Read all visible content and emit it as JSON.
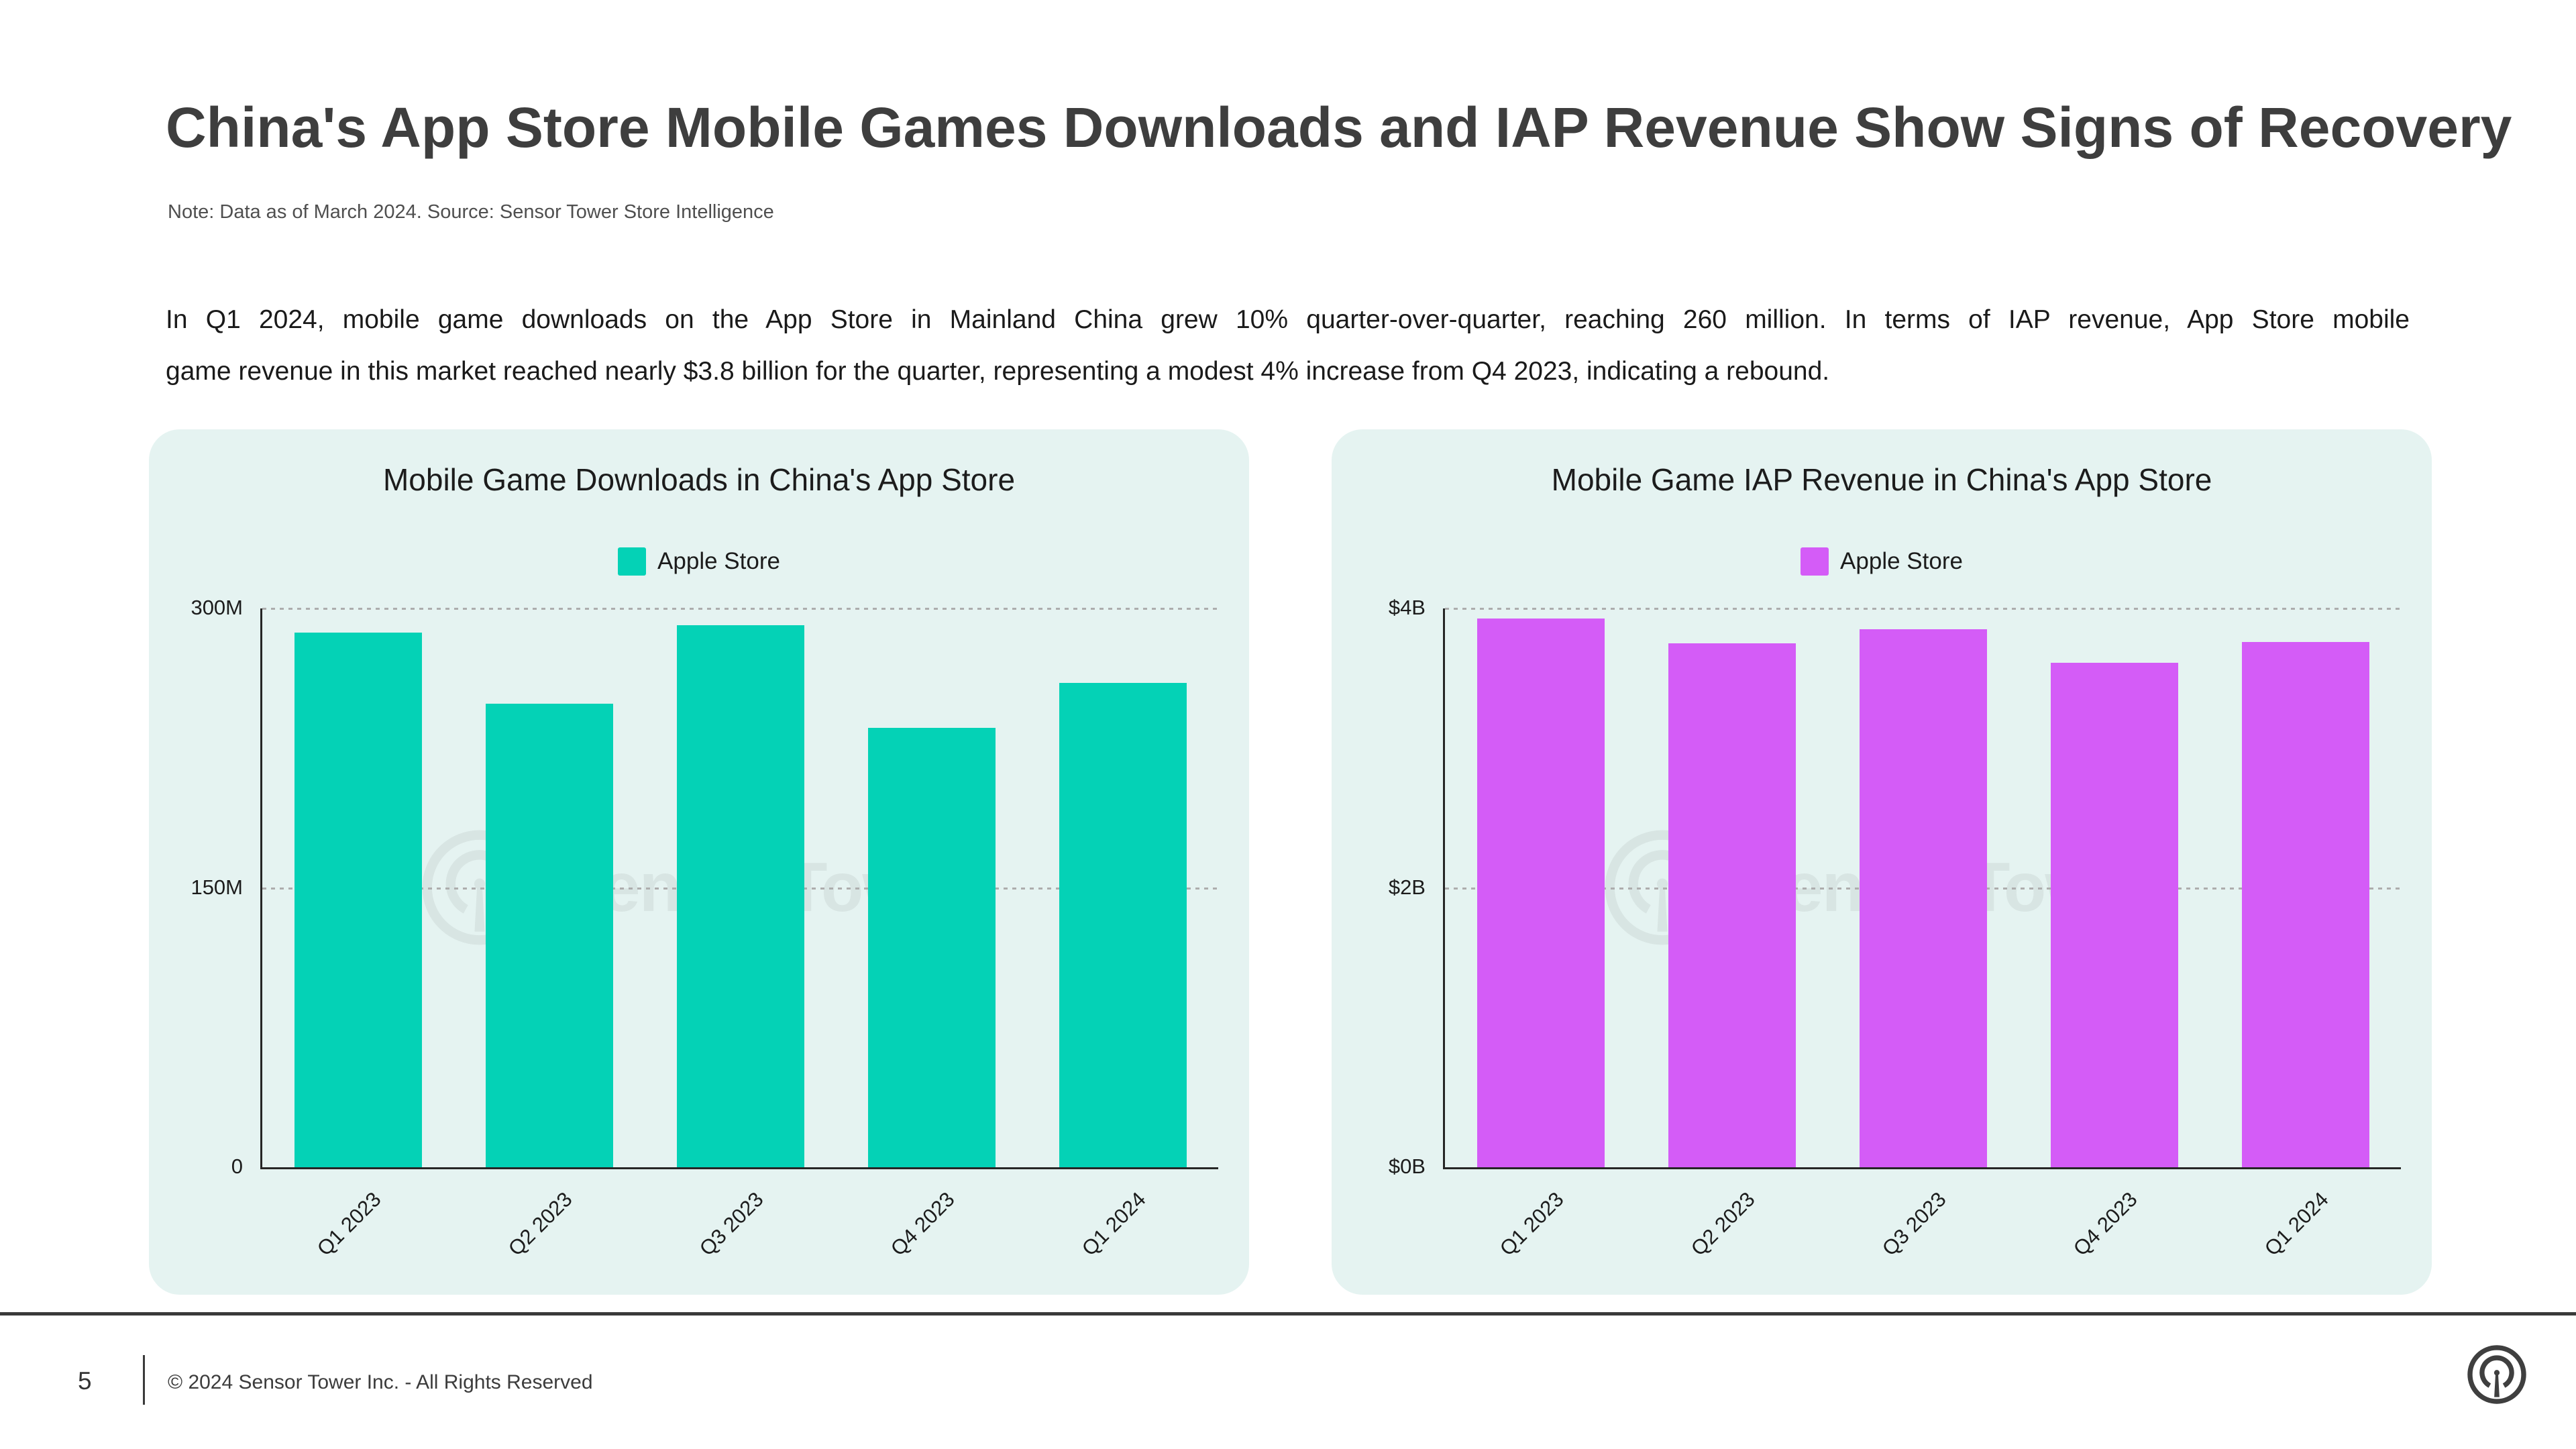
{
  "header": {
    "title": "China's App Store Mobile Games Downloads and IAP Revenue Show Signs of Recovery",
    "note": "Note: Data as of March 2024. Source: Sensor Tower Store Intelligence"
  },
  "body": {
    "lines": [
      "In Q1 2024, mobile game downloads on the App Store in Mainland China grew 10% quarter-over-quarter, reaching 260 million. In terms of IAP revenue, App Store mobile",
      "game revenue in this market reached nearly $3.8 billion for the quarter, representing a modest 4% increase from Q4 2023, indicating a rebound."
    ]
  },
  "watermark": {
    "text": "SensorTower"
  },
  "footer": {
    "page_number": "5",
    "copyright": "© 2024 Sensor Tower Inc. - All Rights Reserved"
  },
  "colors": {
    "page_background": "#FFFFFF",
    "card_background": "#E5F3F1",
    "downloads_bar": "#04D2B6",
    "revenue_bar": "#D45CF7",
    "gridline": "#ADADAD",
    "axis": "#262626",
    "footer_line": "#3A3A3A",
    "title_text": "#3E3E3E"
  },
  "chart_data": [
    {
      "type": "bar",
      "title": "Mobile Game Downloads in China's App Store",
      "categories": [
        "Q1 2023",
        "Q2 2023",
        "Q3 2023",
        "Q4 2023",
        "Q1 2024"
      ],
      "series": [
        {
          "name": "Apple Store",
          "color": "#04D2B6",
          "values": [
            287,
            249,
            291,
            236,
            260
          ]
        }
      ],
      "unit": "M downloads",
      "y_axis": {
        "min": 0,
        "max": 300,
        "ticks": [
          {
            "label": "300M",
            "value": 300
          },
          {
            "label": "150M",
            "value": 150
          },
          {
            "label": "0",
            "value": 0
          }
        ]
      },
      "legend_position": "top-center",
      "grid": "horizontal-dashed",
      "x_label_rotation_deg": 45
    },
    {
      "type": "bar",
      "title": "Mobile Game IAP Revenue in China's App Store",
      "categories": [
        "Q1 2023",
        "Q2 2023",
        "Q3 2023",
        "Q4 2023",
        "Q1 2024"
      ],
      "series": [
        {
          "name": "Apple Store",
          "color": "#D45CF7",
          "values": [
            3.93,
            3.75,
            3.85,
            3.61,
            3.76
          ]
        }
      ],
      "unit": "$B IAP revenue",
      "y_axis": {
        "min": 0,
        "max": 4,
        "ticks": [
          {
            "label": "$4B",
            "value": 4
          },
          {
            "label": "$2B",
            "value": 2
          },
          {
            "label": "$0B",
            "value": 0
          }
        ]
      },
      "legend_position": "top-center",
      "grid": "horizontal-dashed",
      "x_label_rotation_deg": 45
    }
  ]
}
